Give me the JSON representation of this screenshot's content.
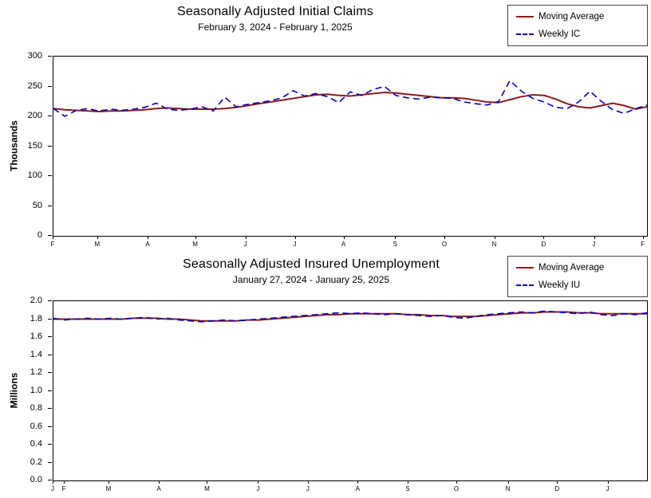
{
  "colors": {
    "moving_average": "#8B1B1B",
    "weekly": "#0000CC"
  },
  "chart_data": [
    {
      "type": "line",
      "title": "Seasonally Adjusted Initial Claims",
      "subtitle": "February 3, 2024 - February 1, 2025",
      "ylabel": "Thousands",
      "ymin": 0,
      "ymax": 300,
      "grid": false,
      "legend_position": "top-right",
      "y_ticks": [
        "300",
        "250",
        "200",
        "150",
        "100",
        "50",
        "0"
      ],
      "months": [
        {
          "label": "F",
          "pos": 0.0
        },
        {
          "label": "M",
          "pos": 0.075
        },
        {
          "label": "A",
          "pos": 0.16
        },
        {
          "label": "M",
          "pos": 0.24
        },
        {
          "label": "J",
          "pos": 0.325
        },
        {
          "label": "J",
          "pos": 0.408
        },
        {
          "label": "A",
          "pos": 0.49
        },
        {
          "label": "S",
          "pos": 0.577
        },
        {
          "label": "O",
          "pos": 0.66
        },
        {
          "label": "N",
          "pos": 0.744
        },
        {
          "label": "D",
          "pos": 0.827
        },
        {
          "label": "J",
          "pos": 0.912
        },
        {
          "label": "F",
          "pos": 0.994
        }
      ],
      "series": [
        {
          "name": "Moving Average",
          "color": "#8B1B1B",
          "dash": "",
          "values": [
            213,
            211,
            210,
            209,
            208,
            209,
            209,
            210,
            211,
            213,
            214,
            213,
            212,
            212,
            212,
            213,
            215,
            218,
            221,
            224,
            227,
            230,
            233,
            236,
            237,
            235,
            234,
            236,
            238,
            240,
            239,
            237,
            235,
            233,
            231,
            231,
            230,
            227,
            224,
            223,
            228,
            233,
            236,
            235,
            229,
            221,
            216,
            214,
            218,
            222,
            218,
            212,
            216
          ]
        },
        {
          "name": "Weekly IC",
          "color": "#0000CC",
          "dash": "8 5",
          "values": [
            213,
            200,
            210,
            213,
            209,
            212,
            210,
            212,
            215,
            222,
            212,
            210,
            212,
            216,
            209,
            232,
            216,
            220,
            223,
            226,
            231,
            243,
            234,
            238,
            233,
            223,
            241,
            235,
            245,
            250,
            235,
            231,
            229,
            232,
            231,
            230,
            224,
            221,
            219,
            225,
            260,
            242,
            230,
            224,
            215,
            213,
            224,
            242,
            225,
            211,
            205,
            213,
            219
          ]
        }
      ]
    },
    {
      "type": "line",
      "title": "Seasonally Adjusted Insured Unemployment",
      "subtitle": "January 27, 2024 - January 25, 2025",
      "ylabel": "Millions",
      "ymin": 0,
      "ymax": 2.0,
      "grid": false,
      "legend_position": "top-right",
      "y_ticks": [
        "2.0",
        "1.8",
        "1.6",
        "1.4",
        "1.2",
        "1.0",
        "0.8",
        "0.6",
        "0.4",
        "0.2",
        "0.0"
      ],
      "months": [
        {
          "label": "J",
          "pos": 0.0
        },
        {
          "label": "F",
          "pos": 0.019
        },
        {
          "label": "M",
          "pos": 0.094
        },
        {
          "label": "A",
          "pos": 0.179
        },
        {
          "label": "M",
          "pos": 0.26
        },
        {
          "label": "J",
          "pos": 0.346
        },
        {
          "label": "J",
          "pos": 0.43
        },
        {
          "label": "A",
          "pos": 0.514
        },
        {
          "label": "S",
          "pos": 0.598
        },
        {
          "label": "O",
          "pos": 0.68
        },
        {
          "label": "N",
          "pos": 0.767
        },
        {
          "label": "D",
          "pos": 0.85
        },
        {
          "label": "J",
          "pos": 0.935
        }
      ],
      "series": [
        {
          "name": "Moving Average",
          "color": "#8B1B1B",
          "dash": "",
          "values": [
            1.8,
            1.8,
            1.8,
            1.8,
            1.8,
            1.8,
            1.8,
            1.81,
            1.81,
            1.81,
            1.8,
            1.8,
            1.79,
            1.78,
            1.78,
            1.78,
            1.78,
            1.79,
            1.79,
            1.8,
            1.81,
            1.82,
            1.83,
            1.84,
            1.85,
            1.85,
            1.86,
            1.86,
            1.86,
            1.86,
            1.86,
            1.85,
            1.85,
            1.84,
            1.84,
            1.83,
            1.83,
            1.83,
            1.84,
            1.85,
            1.86,
            1.87,
            1.87,
            1.88,
            1.88,
            1.88,
            1.87,
            1.87,
            1.86,
            1.86,
            1.86,
            1.86,
            1.86
          ]
        },
        {
          "name": "Weekly IU",
          "color": "#0000CC",
          "dash": "8 5",
          "values": [
            1.81,
            1.79,
            1.8,
            1.81,
            1.8,
            1.81,
            1.8,
            1.81,
            1.82,
            1.8,
            1.81,
            1.79,
            1.78,
            1.77,
            1.78,
            1.79,
            1.78,
            1.79,
            1.8,
            1.81,
            1.82,
            1.83,
            1.84,
            1.85,
            1.86,
            1.87,
            1.86,
            1.87,
            1.86,
            1.85,
            1.86,
            1.85,
            1.84,
            1.83,
            1.84,
            1.82,
            1.81,
            1.83,
            1.85,
            1.86,
            1.87,
            1.88,
            1.87,
            1.89,
            1.88,
            1.87,
            1.86,
            1.88,
            1.85,
            1.84,
            1.86,
            1.85,
            1.87
          ]
        }
      ]
    }
  ]
}
